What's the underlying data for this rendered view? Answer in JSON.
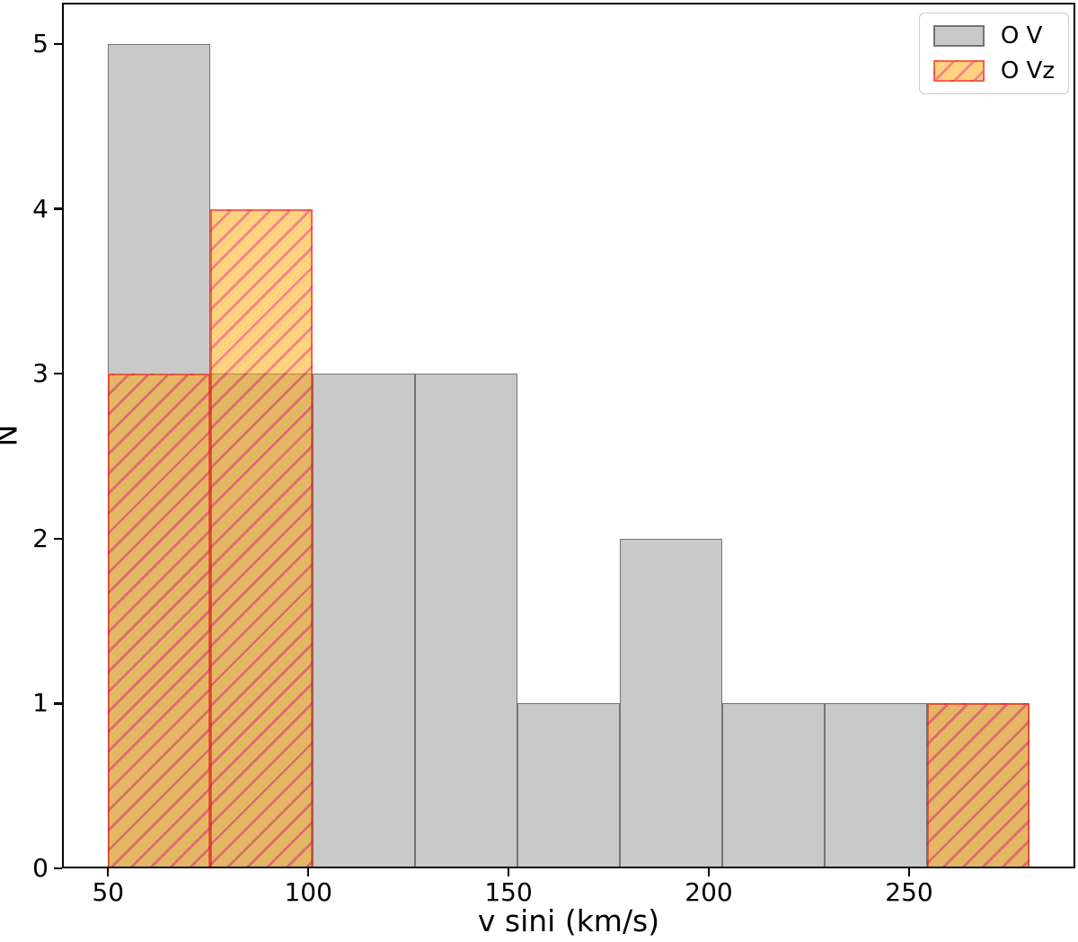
{
  "chart_data": {
    "type": "bar",
    "subtype": "overlapping-histogram",
    "title": "",
    "xlabel": "v sini (km/s)",
    "ylabel": "N",
    "bin_edges": [
      50,
      75.56,
      101.11,
      126.67,
      152.22,
      177.78,
      203.33,
      228.89,
      254.44,
      280
    ],
    "series": [
      {
        "name": "O V",
        "values": [
          5,
          3,
          3,
          3,
          1,
          2,
          1,
          1,
          1
        ],
        "fill_color": "#c9c9c9",
        "edge_color": "#747474",
        "edge_width": 1.6,
        "hatch": "none",
        "hatch_color": ""
      },
      {
        "name": "O Vz",
        "values": [
          3,
          4,
          0,
          0,
          0,
          0,
          0,
          0,
          1
        ],
        "fill_color": "rgba(255,165,0,0.5)",
        "edge_color": "rgba(237,28,36,0.6)",
        "edge_width": 2.5,
        "hatch": "/",
        "hatch_color": "rgba(237,28,36,0.55)"
      }
    ],
    "xticks": [
      50,
      100,
      150,
      200,
      250
    ],
    "yticks": [
      0,
      1,
      2,
      3,
      4,
      5
    ],
    "xlim": [
      38.5,
      291.5
    ],
    "ylim": [
      0,
      5.25
    ],
    "grid": false,
    "legend_position": "upper right",
    "axis_color": "#000000",
    "background_color": "#ffffff"
  }
}
